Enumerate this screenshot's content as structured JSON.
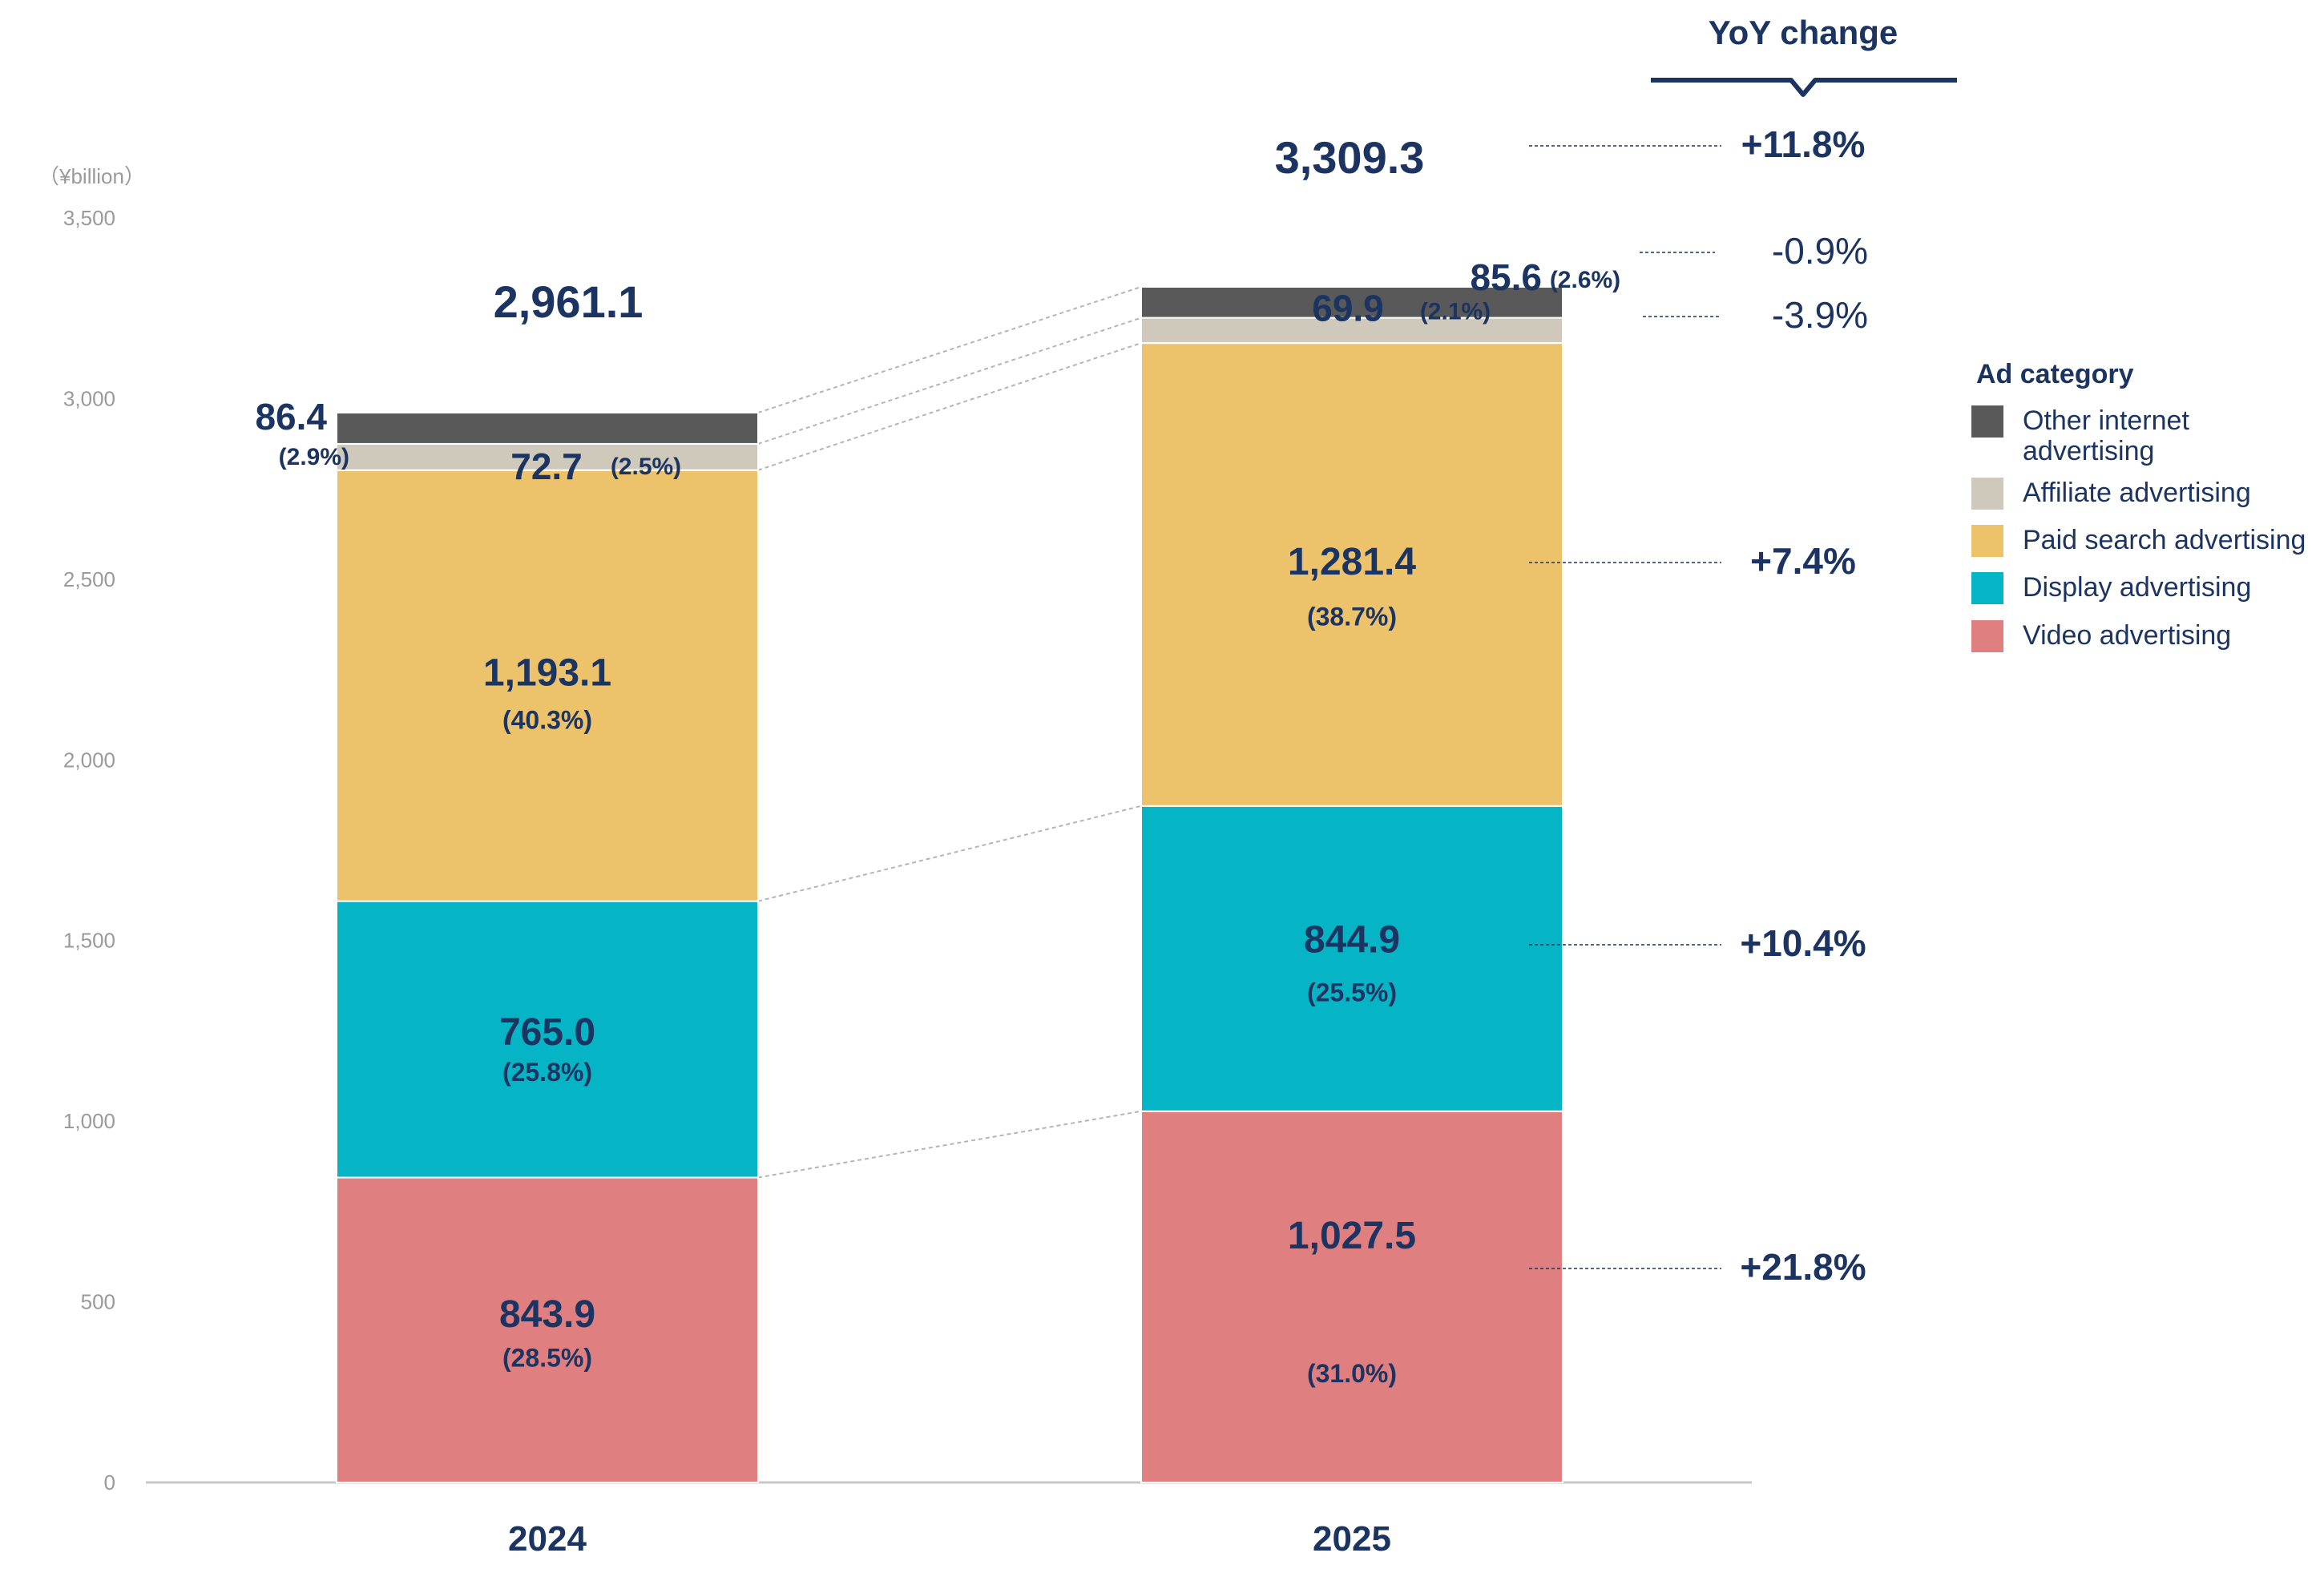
{
  "chart_data": {
    "type": "bar",
    "stacked": true,
    "unit_label": "（¥billion）",
    "categories": [
      "2024",
      "2025"
    ],
    "ylim": [
      0,
      3500
    ],
    "yticks": [
      "0",
      "500",
      "1,000",
      "1,500",
      "2,000",
      "2,500",
      "3,000",
      "3,500"
    ],
    "ytick_values": [
      0,
      500,
      1000,
      1500,
      2000,
      2500,
      3000,
      3500
    ],
    "totals": [
      2961.1,
      3309.3
    ],
    "total_labels": [
      "2,961.1",
      "3,309.3"
    ],
    "series": [
      {
        "name": "Video advertising",
        "color": "#e07f80",
        "values": [
          843.9,
          1027.5
        ],
        "labels": [
          "843.9",
          "1,027.5"
        ],
        "shares": [
          "(28.5%)",
          "(31.0%)"
        ],
        "yoy": "+21.8%"
      },
      {
        "name": "Display advertising",
        "color": "#05b5c5",
        "values": [
          765.0,
          844.9
        ],
        "labels": [
          "765.0",
          "844.9"
        ],
        "shares": [
          "(25.8%)",
          "(25.5%)"
        ],
        "yoy": "+10.4%"
      },
      {
        "name": "Paid search advertising",
        "color": "#ecc36b",
        "values": [
          1193.1,
          1281.4
        ],
        "labels": [
          "1,193.1",
          "1,281.4"
        ],
        "shares": [
          "(40.3%)",
          "(38.7%)"
        ],
        "yoy": "+7.4%"
      },
      {
        "name": "Affiliate advertising",
        "color": "#cfc9bb",
        "values": [
          72.7,
          69.9
        ],
        "labels": [
          "72.7",
          "69.9"
        ],
        "shares": [
          "(2.5%)",
          "(2.1%)"
        ],
        "yoy": "-3.9%"
      },
      {
        "name": "Other internet advertising",
        "color": "#595959",
        "values": [
          86.4,
          85.6
        ],
        "labels": [
          "86.4",
          "85.6"
        ],
        "shares": [
          "(2.9%)",
          "(2.6%)"
        ],
        "yoy": "-0.9%"
      }
    ],
    "yoy_header": "YoY change",
    "total_yoy": "+11.8%",
    "legend_title": "Ad category",
    "legend": [
      {
        "lines": [
          "Other internet",
          "advertising"
        ],
        "color": "#595959"
      },
      {
        "lines": [
          "Affiliate advertising"
        ],
        "color": "#cfc9bb"
      },
      {
        "lines": [
          "Paid search advertising"
        ],
        "color": "#ecc36b"
      },
      {
        "lines": [
          "Display advertising"
        ],
        "color": "#05b5c5"
      },
      {
        "lines": [
          "Video advertising"
        ],
        "color": "#e07f80"
      }
    ],
    "colors": {
      "text": "#1c3461",
      "axis": "#9a9a9a",
      "connector": "#b5b5b5"
    }
  }
}
